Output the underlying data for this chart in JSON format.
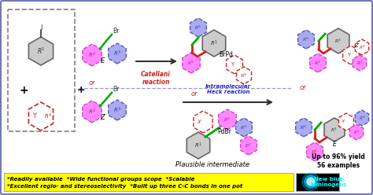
{
  "bg_color": "#e8e8f8",
  "outer_border_color": "#7777bb",
  "main_bg": "#ffffff",
  "yellow_bg": "#ffff00",
  "bottom_text_line1": "*Readily available  *Wide functional groups scope  *Scalable",
  "bottom_text_line2": "*Excellent regio- and stereoselectivity  *Built up three C-C bonds in one pot",
  "cyan_text": "New blue\nluminogens",
  "catellani_text": "Catellani\nreaction",
  "heck_text": "Intramolecular\nHeck reaction",
  "intermediate_text": "Plausible intermediate",
  "yield_text": "Up to 96% yield\n56 examples",
  "pink_hex_color": "#ff88ff",
  "pink_hex_edge": "#cc44cc",
  "blue_hex_color": "#aaaaee",
  "blue_hex_edge": "#5555cc",
  "red_hex_color": "#ffffff",
  "red_hex_edge": "#cc2222",
  "grey_hex_color": "#cccccc",
  "grey_hex_edge": "#666666",
  "green_bond": "#00aa00",
  "red_bond": "#cc2222",
  "arrow_color": "#333333",
  "dashed_line_color": "#9999cc"
}
